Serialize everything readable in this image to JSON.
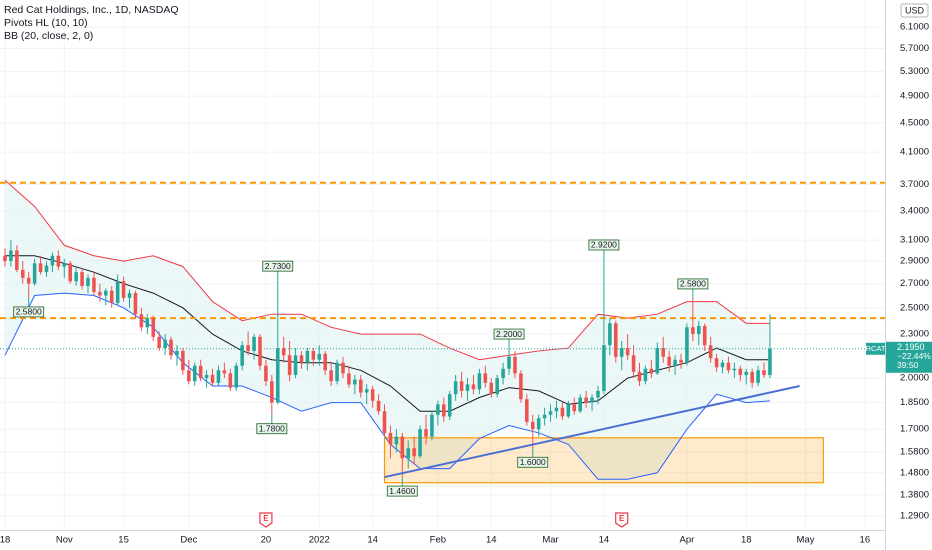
{
  "chart_data": {
    "type": "candlestick",
    "title": "Red Cat Holdings, Inc., 1D, NASDAQ",
    "indicators": [
      "Pivots HL (10, 10)",
      "BB (20, close, 2, 0)"
    ],
    "currency": "USD",
    "symbol": "RCAT",
    "log_scale": true,
    "grid": true,
    "up_color": "#26a69a",
    "down_color": "#ef5350",
    "xlim": [
      -0.84,
      148.4
    ],
    "ylim": [
      1.234,
      6.65
    ],
    "xticks": [
      {
        "value": 0,
        "label": "18"
      },
      {
        "value": 10,
        "label": "Nov"
      },
      {
        "value": 20,
        "label": "15"
      },
      {
        "value": 31,
        "label": "Dec"
      },
      {
        "value": 44,
        "label": "20"
      },
      {
        "value": 53,
        "label": "2022"
      },
      {
        "value": 62,
        "label": "14"
      },
      {
        "value": 73,
        "label": "Feb"
      },
      {
        "value": 82,
        "label": "14"
      },
      {
        "value": 92,
        "label": "Mar"
      },
      {
        "value": 101,
        "label": "14"
      },
      {
        "value": 115,
        "label": "Apr"
      },
      {
        "value": 125,
        "label": "18"
      },
      {
        "value": 135,
        "label": "May"
      },
      {
        "value": 145,
        "label": "16"
      }
    ],
    "yticks": [
      {
        "value": 6.1,
        "label": "6.1000"
      },
      {
        "value": 5.7,
        "label": "5.7000"
      },
      {
        "value": 5.3,
        "label": "5.3000"
      },
      {
        "value": 4.9,
        "label": "4.9000"
      },
      {
        "value": 4.5,
        "label": "4.5000"
      },
      {
        "value": 4.1,
        "label": "4.1000"
      },
      {
        "value": 3.7,
        "label": "3.7000"
      },
      {
        "value": 3.4,
        "label": "3.4000"
      },
      {
        "value": 3.1,
        "label": "3.1000"
      },
      {
        "value": 2.9,
        "label": "2.9000"
      },
      {
        "value": 2.7,
        "label": "2.7000"
      },
      {
        "value": 2.5,
        "label": "2.5000"
      },
      {
        "value": 2.3,
        "label": "2.3000"
      },
      {
        "value": 2.0,
        "label": "2.0000"
      },
      {
        "value": 1.85,
        "label": "1.8500"
      },
      {
        "value": 1.7,
        "label": "1.7000"
      },
      {
        "value": 1.58,
        "label": "1.5800"
      },
      {
        "value": 1.48,
        "label": "1.4800"
      },
      {
        "value": 1.38,
        "label": "1.3800"
      },
      {
        "value": 1.29,
        "label": "1.2900"
      }
    ],
    "ohlc": [
      [
        2.95,
        3.02,
        2.85,
        2.9
      ],
      [
        2.9,
        3.1,
        2.85,
        3.0
      ],
      [
        3.0,
        3.05,
        2.8,
        2.82
      ],
      [
        2.82,
        2.9,
        2.7,
        2.75
      ],
      [
        2.75,
        2.8,
        2.58,
        2.7
      ],
      [
        2.7,
        2.92,
        2.68,
        2.88
      ],
      [
        2.88,
        2.95,
        2.78,
        2.8
      ],
      [
        2.8,
        2.9,
        2.76,
        2.86
      ],
      [
        2.86,
        2.98,
        2.8,
        2.95
      ],
      [
        2.95,
        3.0,
        2.82,
        2.85
      ],
      [
        2.85,
        2.92,
        2.75,
        2.88
      ],
      [
        2.88,
        2.9,
        2.7,
        2.72
      ],
      [
        2.72,
        2.85,
        2.68,
        2.8
      ],
      [
        2.8,
        2.84,
        2.65,
        2.68
      ],
      [
        2.68,
        2.78,
        2.62,
        2.75
      ],
      [
        2.75,
        2.8,
        2.6,
        2.63
      ],
      [
        2.63,
        2.7,
        2.55,
        2.6
      ],
      [
        2.6,
        2.66,
        2.52,
        2.64
      ],
      [
        2.64,
        2.68,
        2.5,
        2.54
      ],
      [
        2.54,
        2.78,
        2.52,
        2.72
      ],
      [
        2.72,
        2.76,
        2.55,
        2.58
      ],
      [
        2.58,
        2.65,
        2.5,
        2.62
      ],
      [
        2.62,
        2.64,
        2.42,
        2.45
      ],
      [
        2.45,
        2.5,
        2.32,
        2.35
      ],
      [
        2.35,
        2.45,
        2.3,
        2.42
      ],
      [
        2.42,
        2.44,
        2.25,
        2.28
      ],
      [
        2.28,
        2.32,
        2.18,
        2.2
      ],
      [
        2.2,
        2.3,
        2.15,
        2.26
      ],
      [
        2.26,
        2.28,
        2.12,
        2.15
      ],
      [
        2.15,
        2.22,
        2.08,
        2.18
      ],
      [
        2.18,
        2.2,
        2.02,
        2.05
      ],
      [
        2.05,
        2.12,
        1.96,
        1.98
      ],
      [
        1.98,
        2.1,
        1.95,
        2.08
      ],
      [
        2.08,
        2.12,
        1.98,
        2.0
      ],
      [
        2.0,
        2.05,
        1.94,
        2.02
      ],
      [
        2.02,
        2.06,
        1.95,
        1.97
      ],
      [
        1.97,
        2.08,
        1.95,
        2.05
      ],
      [
        2.05,
        2.1,
        2.0,
        2.03
      ],
      [
        2.03,
        2.06,
        1.92,
        1.94
      ],
      [
        1.94,
        2.1,
        1.92,
        2.08
      ],
      [
        2.08,
        2.25,
        2.05,
        2.22
      ],
      [
        2.22,
        2.32,
        2.15,
        2.18
      ],
      [
        2.18,
        2.3,
        2.12,
        2.28
      ],
      [
        2.28,
        2.3,
        2.05,
        2.08
      ],
      [
        2.08,
        2.12,
        1.95,
        1.98
      ],
      [
        1.98,
        2.02,
        1.78,
        1.85
      ],
      [
        1.85,
        2.73,
        1.84,
        2.2
      ],
      [
        2.2,
        2.28,
        2.1,
        2.15
      ],
      [
        2.15,
        2.25,
        1.98,
        2.02
      ],
      [
        2.02,
        2.2,
        2.0,
        2.15
      ],
      [
        2.15,
        2.18,
        2.06,
        2.1
      ],
      [
        2.1,
        2.2,
        2.05,
        2.18
      ],
      [
        2.18,
        2.2,
        2.08,
        2.12
      ],
      [
        2.12,
        2.22,
        2.08,
        2.16
      ],
      [
        2.16,
        2.18,
        2.02,
        2.05
      ],
      [
        2.05,
        2.1,
        1.95,
        1.98
      ],
      [
        1.98,
        2.12,
        1.96,
        2.1
      ],
      [
        2.1,
        2.14,
        2.0,
        2.03
      ],
      [
        2.03,
        2.08,
        1.94,
        1.96
      ],
      [
        1.96,
        2.02,
        1.9,
        1.99
      ],
      [
        1.99,
        2.02,
        1.88,
        1.91
      ],
      [
        1.91,
        1.96,
        1.84,
        1.93
      ],
      [
        1.93,
        1.95,
        1.82,
        1.86
      ],
      [
        1.86,
        1.9,
        1.78,
        1.8
      ],
      [
        1.8,
        1.84,
        1.66,
        1.68
      ],
      [
        1.68,
        1.72,
        1.55,
        1.62
      ],
      [
        1.62,
        1.7,
        1.58,
        1.66
      ],
      [
        1.66,
        1.68,
        1.46,
        1.55
      ],
      [
        1.55,
        1.64,
        1.5,
        1.6
      ],
      [
        1.6,
        1.66,
        1.52,
        1.56
      ],
      [
        1.56,
        1.72,
        1.55,
        1.7
      ],
      [
        1.7,
        1.78,
        1.62,
        1.66
      ],
      [
        1.66,
        1.8,
        1.64,
        1.78
      ],
      [
        1.78,
        1.86,
        1.72,
        1.84
      ],
      [
        1.84,
        1.88,
        1.74,
        1.77
      ],
      [
        1.77,
        1.92,
        1.75,
        1.9
      ],
      [
        1.9,
        2.02,
        1.86,
        1.98
      ],
      [
        1.98,
        2.04,
        1.88,
        1.92
      ],
      [
        1.92,
        2.0,
        1.86,
        1.96
      ],
      [
        1.96,
        2.02,
        1.9,
        1.93
      ],
      [
        1.93,
        2.06,
        1.9,
        2.03
      ],
      [
        2.03,
        2.08,
        1.94,
        1.97
      ],
      [
        1.97,
        2.0,
        1.88,
        1.9
      ],
      [
        1.9,
        2.02,
        1.88,
        2.0
      ],
      [
        2.0,
        2.1,
        1.96,
        2.06
      ],
      [
        2.06,
        2.2,
        2.02,
        2.14
      ],
      [
        2.14,
        2.18,
        2.0,
        2.03
      ],
      [
        2.03,
        2.05,
        1.85,
        1.87
      ],
      [
        1.87,
        1.9,
        1.72,
        1.74
      ],
      [
        1.74,
        1.78,
        1.6,
        1.7
      ],
      [
        1.7,
        1.78,
        1.66,
        1.76
      ],
      [
        1.76,
        1.82,
        1.72,
        1.78
      ],
      [
        1.78,
        1.84,
        1.74,
        1.8
      ],
      [
        1.8,
        1.86,
        1.76,
        1.82
      ],
      [
        1.82,
        1.85,
        1.75,
        1.77
      ],
      [
        1.77,
        1.86,
        1.76,
        1.84
      ],
      [
        1.84,
        1.88,
        1.78,
        1.8
      ],
      [
        1.8,
        1.9,
        1.79,
        1.88
      ],
      [
        1.88,
        1.92,
        1.82,
        1.85
      ],
      [
        1.85,
        1.9,
        1.8,
        1.88
      ],
      [
        1.88,
        1.95,
        1.84,
        1.92
      ],
      [
        1.92,
        2.92,
        1.9,
        2.22
      ],
      [
        2.22,
        2.42,
        2.15,
        2.38
      ],
      [
        2.38,
        2.4,
        2.1,
        2.14
      ],
      [
        2.14,
        2.25,
        2.05,
        2.2
      ],
      [
        2.2,
        2.3,
        2.12,
        2.15
      ],
      [
        2.15,
        2.22,
        2.0,
        2.04
      ],
      [
        2.04,
        2.1,
        1.95,
        1.98
      ],
      [
        1.98,
        2.08,
        1.96,
        2.06
      ],
      [
        2.06,
        2.12,
        2.0,
        2.03
      ],
      [
        2.03,
        2.24,
        2.02,
        2.2
      ],
      [
        2.2,
        2.28,
        2.1,
        2.14
      ],
      [
        2.14,
        2.18,
        2.04,
        2.08
      ],
      [
        2.08,
        2.15,
        2.02,
        2.12
      ],
      [
        2.12,
        2.16,
        2.06,
        2.1
      ],
      [
        2.1,
        2.38,
        2.08,
        2.35
      ],
      [
        2.35,
        2.58,
        2.25,
        2.3
      ],
      [
        2.3,
        2.4,
        2.22,
        2.36
      ],
      [
        2.36,
        2.38,
        2.18,
        2.22
      ],
      [
        2.22,
        2.28,
        2.1,
        2.13
      ],
      [
        2.13,
        2.16,
        2.04,
        2.07
      ],
      [
        2.07,
        2.12,
        2.03,
        2.1
      ],
      [
        2.1,
        2.14,
        2.03,
        2.05
      ],
      [
        2.05,
        2.1,
        2.0,
        2.06
      ],
      [
        2.06,
        2.08,
        1.98,
        2.02
      ],
      [
        2.02,
        2.06,
        1.96,
        2.04
      ],
      [
        2.04,
        2.06,
        1.94,
        1.97
      ],
      [
        1.97,
        2.08,
        1.95,
        2.05
      ],
      [
        2.05,
        2.1,
        2.0,
        2.02
      ],
      [
        2.02,
        2.45,
        2.0,
        2.195
      ]
    ],
    "bands": [
      {
        "color": "#f23645",
        "x": [
          0,
          5,
          10,
          15,
          20,
          25,
          30,
          35,
          40,
          45,
          50,
          55,
          60,
          65,
          70,
          75,
          80,
          85,
          90,
          95,
          100,
          105,
          110,
          115,
          120,
          125,
          129
        ],
        "values": [
          3.75,
          3.45,
          3.05,
          2.95,
          2.9,
          2.95,
          2.85,
          2.55,
          2.4,
          2.45,
          2.45,
          2.35,
          2.3,
          2.3,
          2.3,
          2.2,
          2.12,
          2.15,
          2.18,
          2.2,
          2.45,
          2.42,
          2.45,
          2.55,
          2.55,
          2.38,
          2.38
        ]
      },
      {
        "color": "#131722",
        "x": [
          0,
          5,
          10,
          15,
          20,
          25,
          30,
          35,
          40,
          45,
          50,
          55,
          60,
          65,
          70,
          75,
          80,
          85,
          90,
          95,
          100,
          105,
          110,
          115,
          120,
          125,
          129
        ],
        "values": [
          2.95,
          2.95,
          2.88,
          2.8,
          2.7,
          2.62,
          2.5,
          2.3,
          2.18,
          2.12,
          2.1,
          2.1,
          2.05,
          1.95,
          1.8,
          1.8,
          1.88,
          1.94,
          1.92,
          1.84,
          1.86,
          2.0,
          2.05,
          2.1,
          2.2,
          2.12,
          2.12
        ]
      },
      {
        "color": "#2962ff",
        "x": [
          0,
          5,
          10,
          15,
          20,
          25,
          30,
          35,
          40,
          45,
          50,
          55,
          60,
          65,
          70,
          75,
          80,
          85,
          90,
          95,
          100,
          105,
          110,
          115,
          120,
          125,
          129
        ],
        "values": [
          2.15,
          2.6,
          2.62,
          2.6,
          2.5,
          2.35,
          2.1,
          1.95,
          1.95,
          1.88,
          1.8,
          1.85,
          1.85,
          1.62,
          1.5,
          1.5,
          1.65,
          1.72,
          1.68,
          1.62,
          1.45,
          1.45,
          1.48,
          1.7,
          1.9,
          1.85,
          1.86
        ]
      }
    ],
    "band_fill": "#e0f2f1",
    "levels": [
      {
        "value": 3.72,
        "color": "#ff9800"
      },
      {
        "value": 2.42,
        "color": "#ff9800"
      }
    ],
    "trendline": {
      "x": [
        64,
        134
      ],
      "values": [
        1.46,
        1.95
      ],
      "color": "#4a6fd3"
    },
    "box": {
      "x": [
        64,
        138
      ],
      "values": [
        1.654,
        1.434
      ],
      "color": "#ff9800"
    },
    "pivots": [
      {
        "x": 4,
        "value": 2.58,
        "label": "2.5800",
        "side": "low"
      },
      {
        "x": 46,
        "value": 2.73,
        "label": "2.7300",
        "side": "high"
      },
      {
        "x": 45,
        "value": 1.78,
        "label": "1.7800",
        "side": "low"
      },
      {
        "x": 85,
        "value": 2.2,
        "label": "2.2000",
        "side": "high"
      },
      {
        "x": 67,
        "value": 1.46,
        "label": "1.4600",
        "side": "low"
      },
      {
        "x": 89,
        "value": 1.6,
        "label": "1.6000",
        "side": "low"
      },
      {
        "x": 101,
        "value": 2.92,
        "label": "2.9200",
        "side": "high"
      },
      {
        "x": 116,
        "value": 2.58,
        "label": "2.5800",
        "side": "high"
      }
    ],
    "last": {
      "value": 2.195,
      "label": "2.1950",
      "change": -22.44,
      "change_label": "−22.44%",
      "countdown": "39:50"
    },
    "earnings": [
      {
        "x": 44,
        "label": "E"
      },
      {
        "x": 104,
        "label": "E"
      }
    ]
  }
}
